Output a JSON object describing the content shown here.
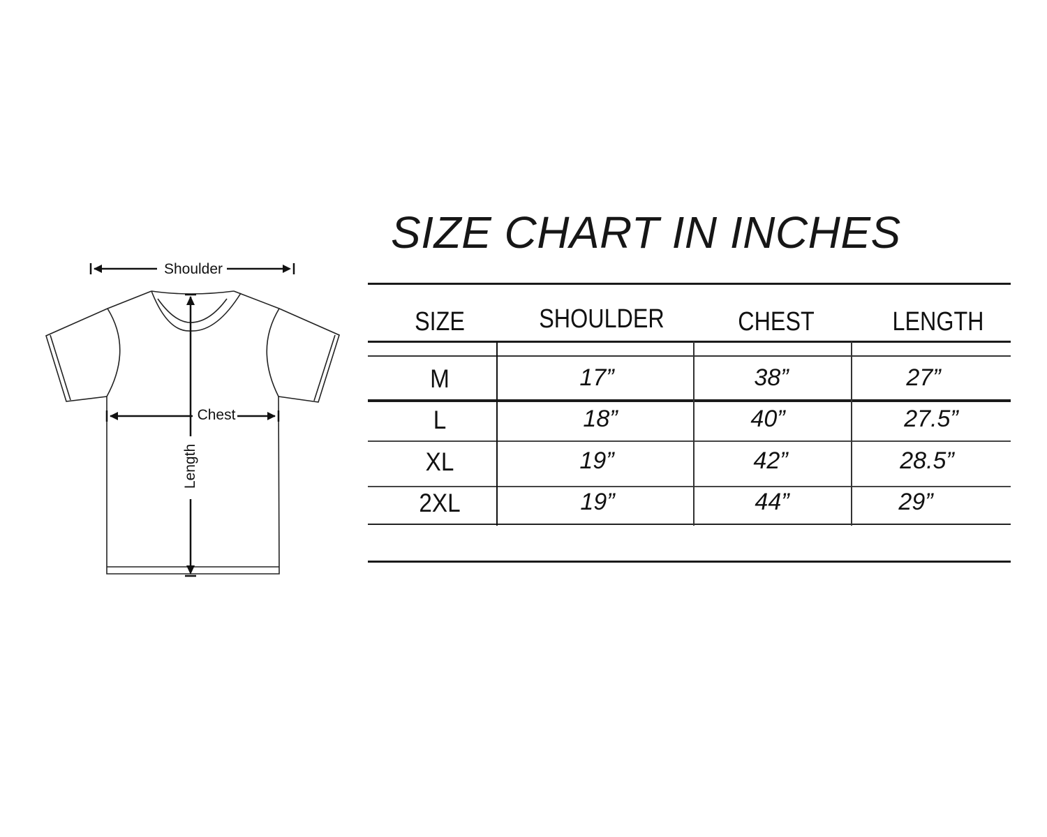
{
  "diagram": {
    "labels": {
      "shoulder": "Shoulder",
      "chest": "Chest",
      "length": "Length"
    }
  },
  "size_chart": {
    "title": "SIZE CHART IN INCHES",
    "headers": [
      "SIZE",
      "SHOULDER",
      "CHEST",
      "LENGTH"
    ],
    "rows": [
      {
        "size": "M",
        "shoulder": "17”",
        "chest": "38”",
        "length": "27”"
      },
      {
        "size": "L",
        "shoulder": "18”",
        "chest": "40”",
        "length": "27.5”"
      },
      {
        "size": "XL",
        "shoulder": "19”",
        "chest": "42”",
        "length": "28.5”"
      },
      {
        "size": "2XL",
        "shoulder": "19”",
        "chest": "44”",
        "length": "29”"
      }
    ]
  }
}
